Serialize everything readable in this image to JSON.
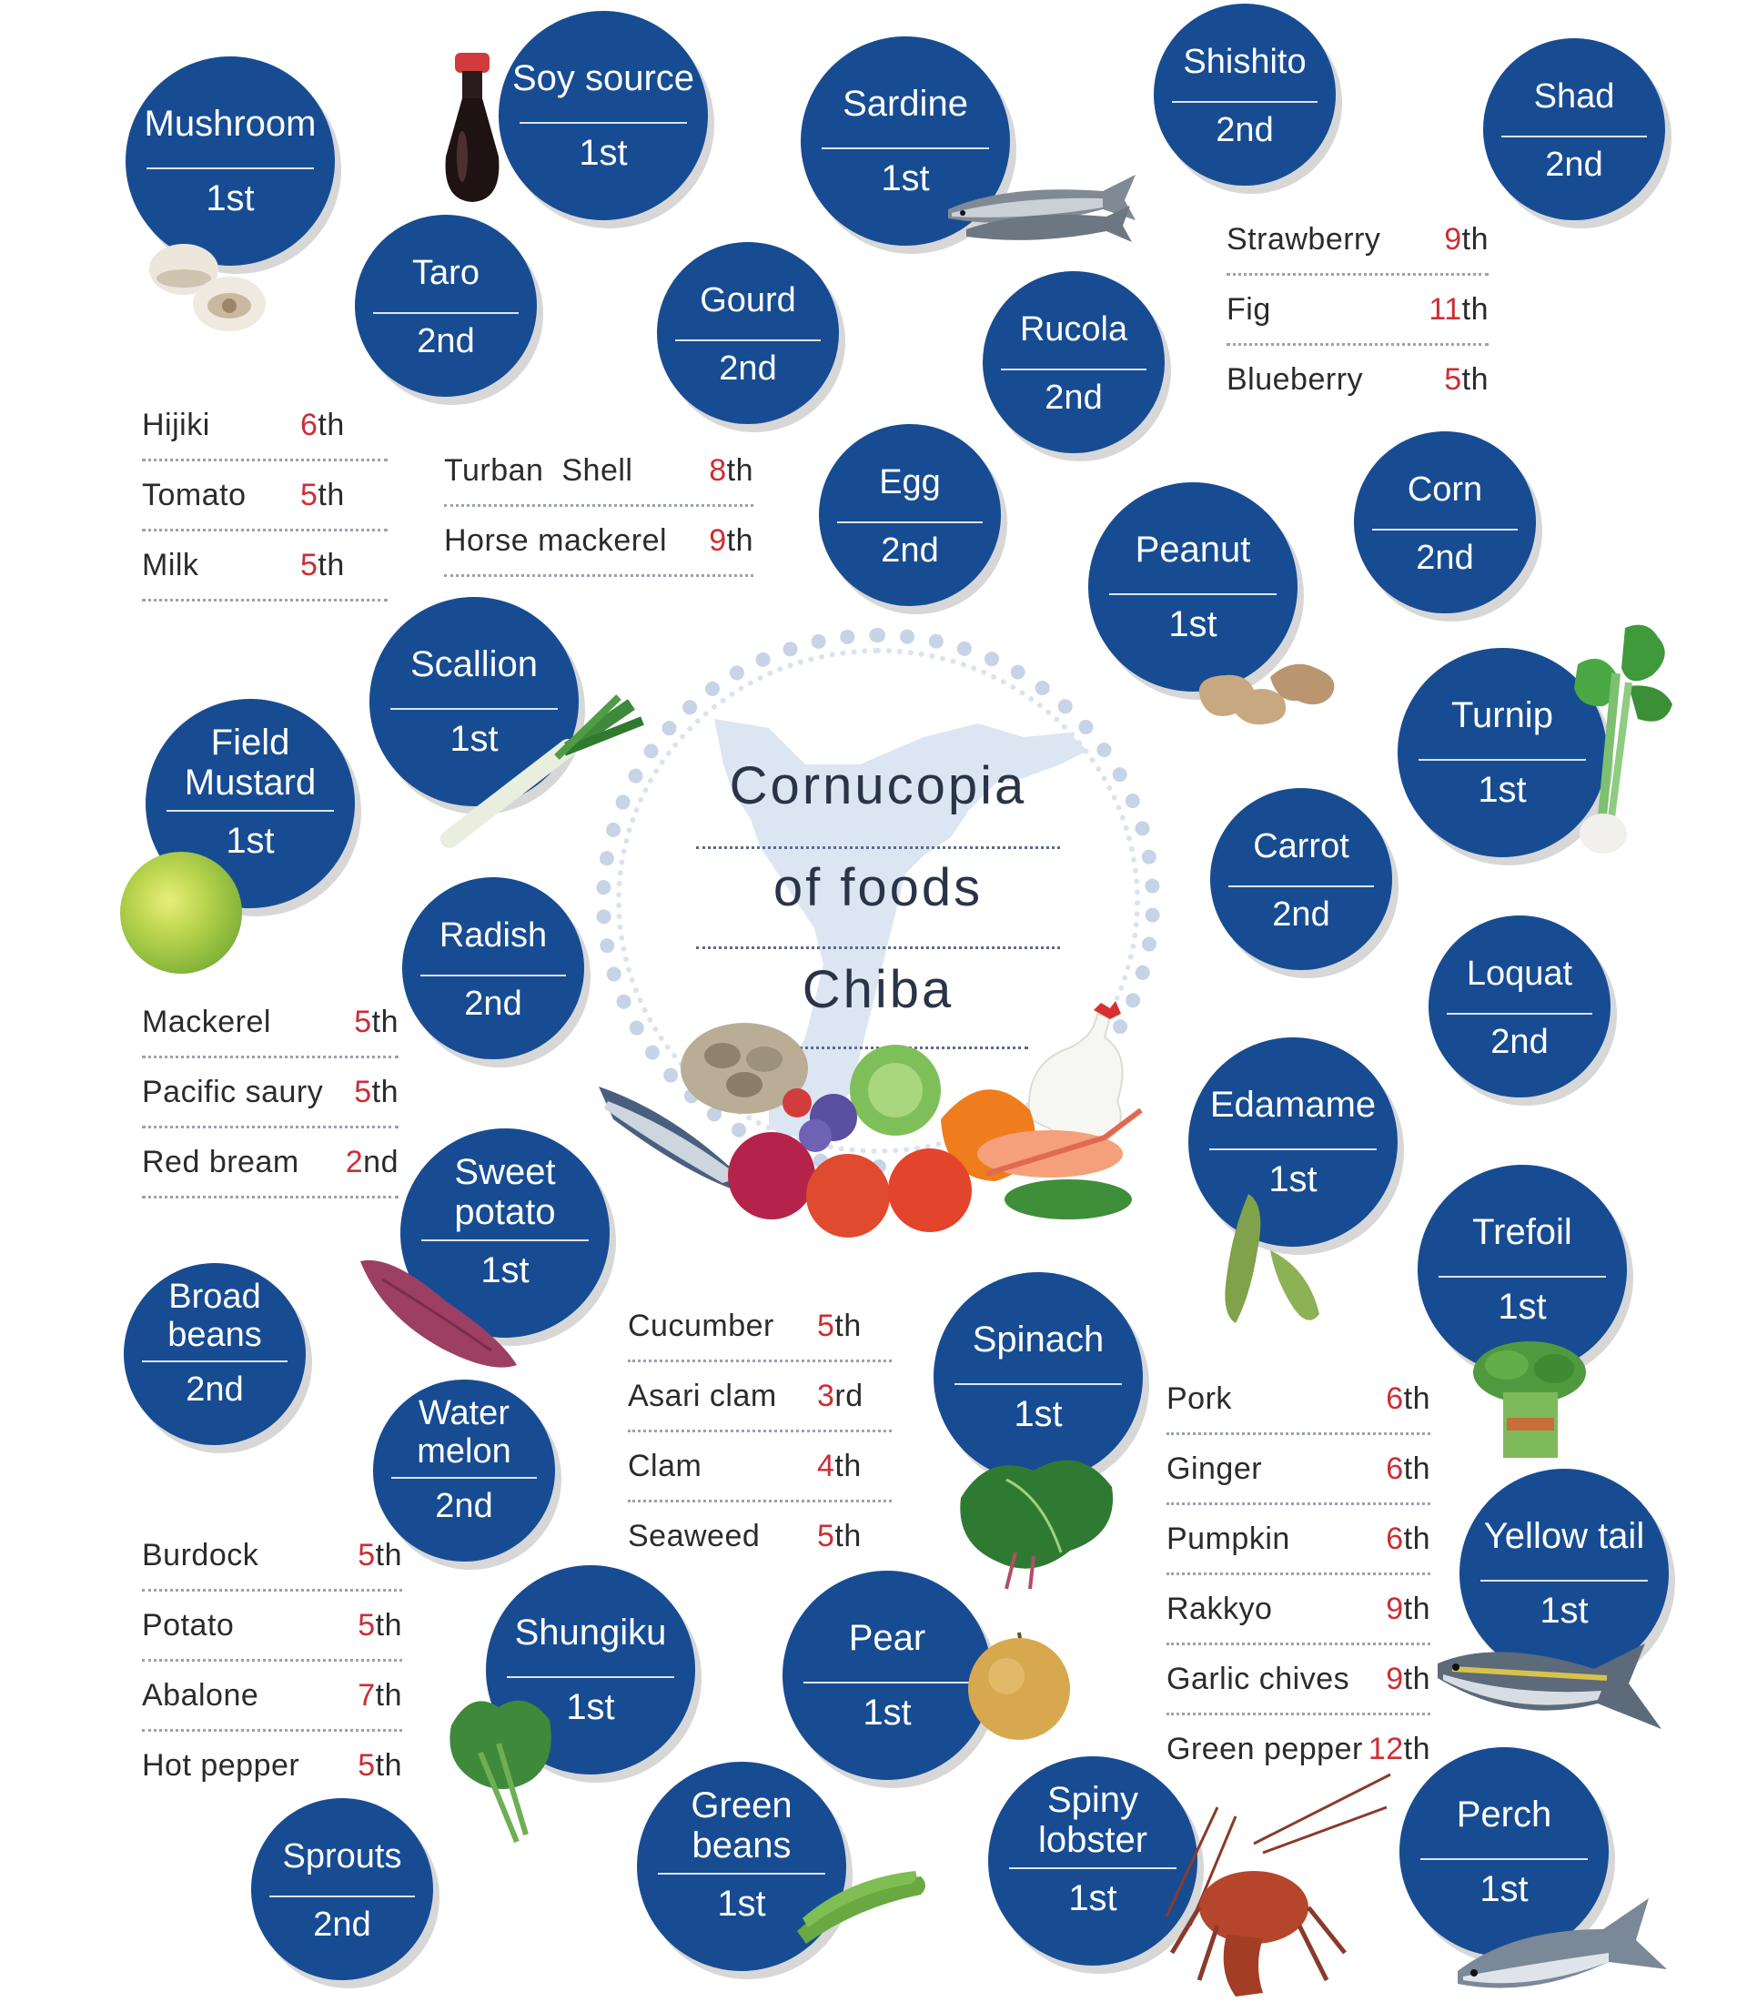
{
  "title": {
    "line1": "Cornucopia",
    "line2": "of  foods",
    "line3": "Chiba"
  },
  "colors": {
    "circle": "#174c93",
    "rank_number": "#cc2e36",
    "map": "#dce5f2"
  },
  "circles": {
    "mushroom": {
      "name": "Mushroom",
      "rank": "1st"
    },
    "soy_source": {
      "name": "Soy source",
      "rank": "1st"
    },
    "sardine": {
      "name": "Sardine",
      "rank": "1st"
    },
    "shishito": {
      "name": "Shishito",
      "rank": "2nd"
    },
    "shad": {
      "name": "Shad",
      "rank": "2nd"
    },
    "taro": {
      "name": "Taro",
      "rank": "2nd"
    },
    "gourd": {
      "name": "Gourd",
      "rank": "2nd"
    },
    "rucola": {
      "name": "Rucola",
      "rank": "2nd"
    },
    "egg": {
      "name": "Egg",
      "rank": "2nd"
    },
    "corn": {
      "name": "Corn",
      "rank": "2nd"
    },
    "peanut": {
      "name": "Peanut",
      "rank": "1st"
    },
    "scallion": {
      "name": "Scallion",
      "rank": "1st"
    },
    "field_mustard": {
      "name": "Field Mustard",
      "rank": "1st"
    },
    "turnip": {
      "name": "Turnip",
      "rank": "1st"
    },
    "carrot": {
      "name": "Carrot",
      "rank": "2nd"
    },
    "radish": {
      "name": "Radish",
      "rank": "2nd"
    },
    "loquat": {
      "name": "Loquat",
      "rank": "2nd"
    },
    "edamame": {
      "name": "Edamame",
      "rank": "1st"
    },
    "sweet_potato": {
      "name": "Sweet potato",
      "rank": "1st"
    },
    "trefoil": {
      "name": "Trefoil",
      "rank": "1st"
    },
    "broad_beans": {
      "name": "Broad beans",
      "rank": "2nd"
    },
    "spinach": {
      "name": "Spinach",
      "rank": "1st"
    },
    "water_melon": {
      "name": "Water melon",
      "rank": "2nd"
    },
    "yellow_tail": {
      "name": "Yellow tail",
      "rank": "1st"
    },
    "shungiku": {
      "name": "Shungiku",
      "rank": "1st"
    },
    "pear": {
      "name": "Pear",
      "rank": "1st"
    },
    "green_beans": {
      "name": "Green beans",
      "rank": "1st"
    },
    "spiny_lobster": {
      "name": "Spiny lobster",
      "rank": "1st"
    },
    "perch": {
      "name": "Perch",
      "rank": "1st"
    },
    "sprouts": {
      "name": "Sprouts",
      "rank": "2nd"
    }
  },
  "lists": {
    "fruit": [
      {
        "name": "Strawberry",
        "num": "9",
        "suffix": "th"
      },
      {
        "name": "Fig",
        "num": "11",
        "suffix": "th"
      },
      {
        "name": "Blueberry",
        "num": "5",
        "suffix": "th"
      }
    ],
    "hijiki": [
      {
        "name": "Hijiki",
        "num": "6",
        "suffix": "th"
      },
      {
        "name": "Tomato",
        "num": "5",
        "suffix": "th"
      },
      {
        "name": "Milk",
        "num": "5",
        "suffix": "th"
      }
    ],
    "turban": [
      {
        "name": "Turban  Shell",
        "num": "8",
        "suffix": "th"
      },
      {
        "name": "Horse mackerel",
        "num": "9",
        "suffix": "th"
      }
    ],
    "fish": [
      {
        "name": "Mackerel",
        "num": "5",
        "suffix": "th"
      },
      {
        "name": "Pacific saury",
        "num": "5",
        "suffix": "th"
      },
      {
        "name": "Red bream",
        "num": "2",
        "suffix": "nd"
      }
    ],
    "cucumber": [
      {
        "name": "Cucumber",
        "num": "5",
        "suffix": "th"
      },
      {
        "name": "Asari clam",
        "num": "3",
        "suffix": "rd"
      },
      {
        "name": "Clam",
        "num": "4",
        "suffix": "th"
      },
      {
        "name": "Seaweed",
        "num": "5",
        "suffix": "th"
      }
    ],
    "pork": [
      {
        "name": "Pork",
        "num": "6",
        "suffix": "th"
      },
      {
        "name": "Ginger",
        "num": "6",
        "suffix": "th"
      },
      {
        "name": "Pumpkin",
        "num": "6",
        "suffix": "th"
      },
      {
        "name": "Rakkyo",
        "num": "9",
        "suffix": "th"
      },
      {
        "name": "Garlic chives",
        "num": "9",
        "suffix": "th"
      },
      {
        "name": "Green pepper",
        "num": "12",
        "suffix": "th"
      }
    ],
    "burdock": [
      {
        "name": "Burdock",
        "num": "5",
        "suffix": "th"
      },
      {
        "name": "Potato",
        "num": "5",
        "suffix": "th"
      },
      {
        "name": "Abalone",
        "num": "7",
        "suffix": "th"
      },
      {
        "name": "Hot pepper",
        "num": "5",
        "suffix": "th"
      }
    ]
  },
  "images": [
    "soy-sauce-bottle-image",
    "mushroom-image",
    "sardine-image",
    "peanut-image",
    "turnip-image",
    "scallion-image",
    "field-mustard-image",
    "food-pile-image",
    "edamame-image",
    "sweet-potato-image",
    "trefoil-image",
    "spinach-image",
    "yellowtail-image",
    "shungiku-image",
    "pear-image",
    "green-beans-image",
    "spiny-lobster-image",
    "perch-image",
    "chiba-map-image"
  ]
}
